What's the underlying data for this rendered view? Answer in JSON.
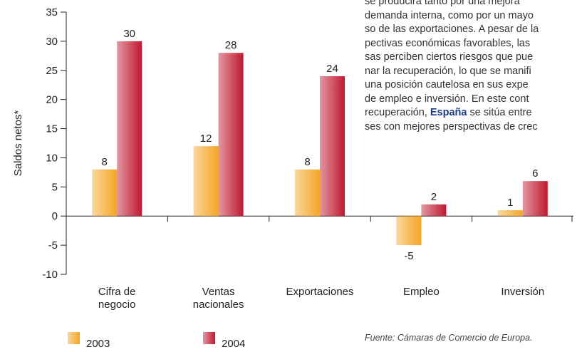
{
  "chart_data": {
    "type": "bar",
    "ylabel": "Saldos netos*",
    "categories": [
      "Cifra de\nnegocio",
      "Ventas\nnacionales",
      "Exportaciones",
      "Empleo",
      "Inversión"
    ],
    "series": [
      {
        "name": "2003",
        "color": "#f5a623",
        "values": [
          8,
          12,
          8,
          -5,
          1
        ]
      },
      {
        "name": "2004",
        "color": "#c0182f",
        "values": [
          30,
          28,
          24,
          2,
          6
        ]
      }
    ],
    "ylim": [
      -10,
      35
    ],
    "yticks": [
      -10,
      -5,
      0,
      5,
      10,
      15,
      20,
      25,
      30,
      35
    ],
    "paragraph": [
      [
        "se producirá tanto por una mejora"
      ],
      [
        "demanda interna, como por un mayo"
      ],
      [
        "so de las exportaciones. A pesar de la"
      ],
      [
        "pectivas económicas favorables, las"
      ],
      [
        "sas perciben ciertos riesgos que pue"
      ],
      [
        "nar la recuperación, lo que se manifi"
      ],
      [
        "una posición cautelosa en sus expe"
      ],
      [
        "de empleo e inversión. En este cont"
      ],
      [
        "recuperación, ",
        "España",
        " se sitúa entre"
      ],
      [
        "ses con mejores perspectivas de crec"
      ]
    ],
    "source": "Fuente: Cámaras de Comercio de Europa."
  }
}
